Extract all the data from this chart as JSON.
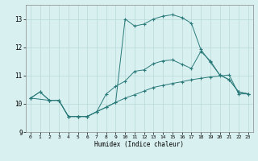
{
  "xlabel": "Humidex (Indice chaleur)",
  "ylabel": "",
  "xlim": [
    -0.5,
    23.5
  ],
  "ylim": [
    9,
    13.5
  ],
  "yticks": [
    9,
    10,
    11,
    12,
    13
  ],
  "xticks": [
    0,
    1,
    2,
    3,
    4,
    5,
    6,
    7,
    8,
    9,
    10,
    11,
    12,
    13,
    14,
    15,
    16,
    17,
    18,
    19,
    20,
    21,
    22,
    23
  ],
  "bg_color": "#d9f0f0",
  "grid_color": "#b8d8d8",
  "line_color": "#2a7a7a",
  "line1_x": [
    0,
    1,
    2,
    3,
    4,
    5,
    6,
    7,
    8,
    9,
    10,
    11,
    12,
    13,
    14,
    15,
    16,
    17,
    18,
    19,
    20,
    21,
    22,
    23
  ],
  "line1_y": [
    10.2,
    10.42,
    10.12,
    10.12,
    9.55,
    9.55,
    9.55,
    9.72,
    9.88,
    10.05,
    13.0,
    12.75,
    12.82,
    13.0,
    13.1,
    13.15,
    13.05,
    12.85,
    11.92,
    11.47,
    11.02,
    10.85,
    10.42,
    10.35
  ],
  "line2_x": [
    0,
    1,
    2,
    3,
    4,
    5,
    6,
    7,
    8,
    9,
    10,
    11,
    12,
    13,
    14,
    15,
    16,
    17,
    18,
    19,
    20,
    21,
    22,
    23
  ],
  "line2_y": [
    10.2,
    10.42,
    10.12,
    10.12,
    9.55,
    9.55,
    9.55,
    9.72,
    10.35,
    10.62,
    10.8,
    11.15,
    11.2,
    11.42,
    11.52,
    11.55,
    11.4,
    11.25,
    11.85,
    11.52,
    11.02,
    10.85,
    10.42,
    10.35
  ],
  "line3_x": [
    0,
    2,
    3,
    4,
    5,
    6,
    7,
    8,
    9,
    10,
    11,
    12,
    13,
    14,
    15,
    16,
    17,
    18,
    19,
    20,
    21,
    22,
    23
  ],
  "line3_y": [
    10.2,
    10.12,
    10.12,
    9.55,
    9.55,
    9.55,
    9.72,
    9.88,
    10.05,
    10.2,
    10.32,
    10.45,
    10.58,
    10.65,
    10.72,
    10.78,
    10.85,
    10.9,
    10.95,
    10.98,
    11.02,
    10.35,
    10.35
  ]
}
